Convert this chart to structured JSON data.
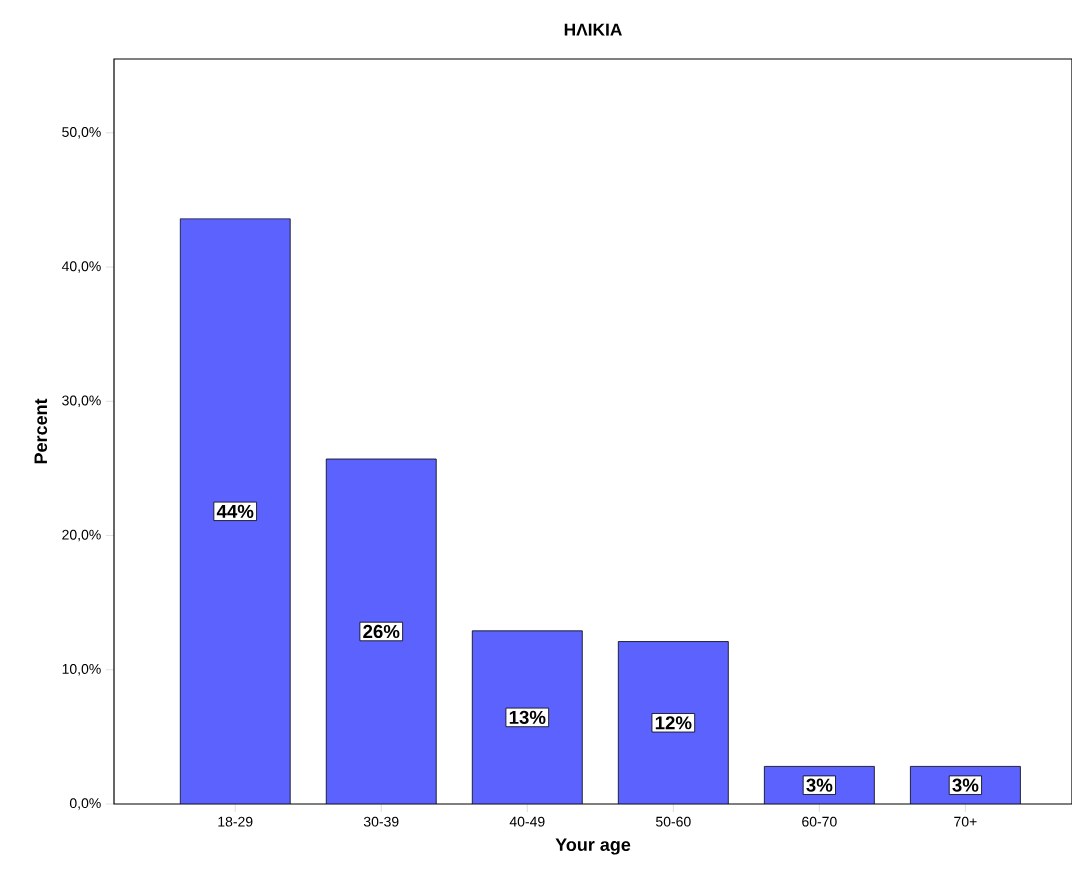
{
  "chart_data": {
    "type": "bar",
    "title": "ΗΛΙΚΙΑ",
    "xlabel": "Your age",
    "ylabel": "Percent",
    "categories": [
      "18-29",
      "30-39",
      "40-49",
      "50-60",
      "60-70",
      "70+"
    ],
    "values": [
      43.6,
      25.7,
      12.9,
      12.1,
      2.8,
      2.8
    ],
    "value_labels": [
      "44%",
      "26%",
      "13%",
      "12%",
      "3%",
      "3%"
    ],
    "color": "#5c62fe",
    "ylim": [
      0,
      55.5
    ],
    "yticks": [
      {
        "value": 0,
        "label": "0,0%"
      },
      {
        "value": 10,
        "label": "10,0%"
      },
      {
        "value": 20,
        "label": "20,0%"
      },
      {
        "value": 30,
        "label": "30,0%"
      },
      {
        "value": 40,
        "label": "40,0%"
      },
      {
        "value": 50,
        "label": "50,0%"
      }
    ],
    "grid": false
  }
}
